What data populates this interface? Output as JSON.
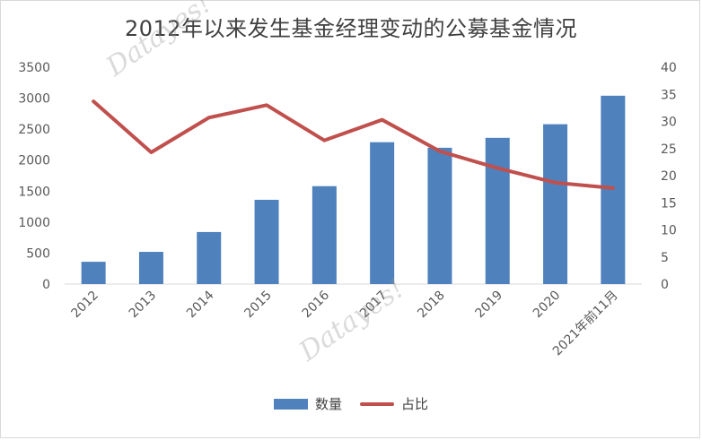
{
  "title": "2012年以来发生基金经理变动的公募基金情况",
  "watermark": "Datayes!",
  "legend": {
    "bar_label": "数量",
    "line_label": "占比"
  },
  "colors": {
    "bar": "#4f81bd",
    "line": "#c0504d",
    "axis_text": "#595959",
    "axis_line": "#d9d9d9"
  },
  "chart_data": {
    "type": "bar",
    "categories": [
      "2012",
      "2013",
      "2014",
      "2015",
      "2016",
      "2017",
      "2018",
      "2019",
      "2020",
      "2021年前11月"
    ],
    "series": [
      {
        "name": "数量",
        "type": "bar",
        "axis": "left",
        "values": [
          360,
          520,
          840,
          1360,
          1580,
          2290,
          2200,
          2360,
          2580,
          3040
        ]
      },
      {
        "name": "占比",
        "type": "line",
        "axis": "right",
        "values": [
          33.7,
          24.3,
          30.7,
          33.0,
          26.5,
          30.3,
          24.5,
          21.4,
          18.7,
          17.7
        ]
      }
    ],
    "ylim_left": [
      0,
      3500
    ],
    "yticks_left": [
      "0",
      "500",
      "1000",
      "1500",
      "2000",
      "2500",
      "3000",
      "3500"
    ],
    "ylim_right": [
      0,
      40
    ],
    "yticks_right": [
      "0",
      "5",
      "10",
      "15",
      "20",
      "25",
      "30",
      "35",
      "40"
    ],
    "grid": false,
    "legend_position": "bottom"
  }
}
